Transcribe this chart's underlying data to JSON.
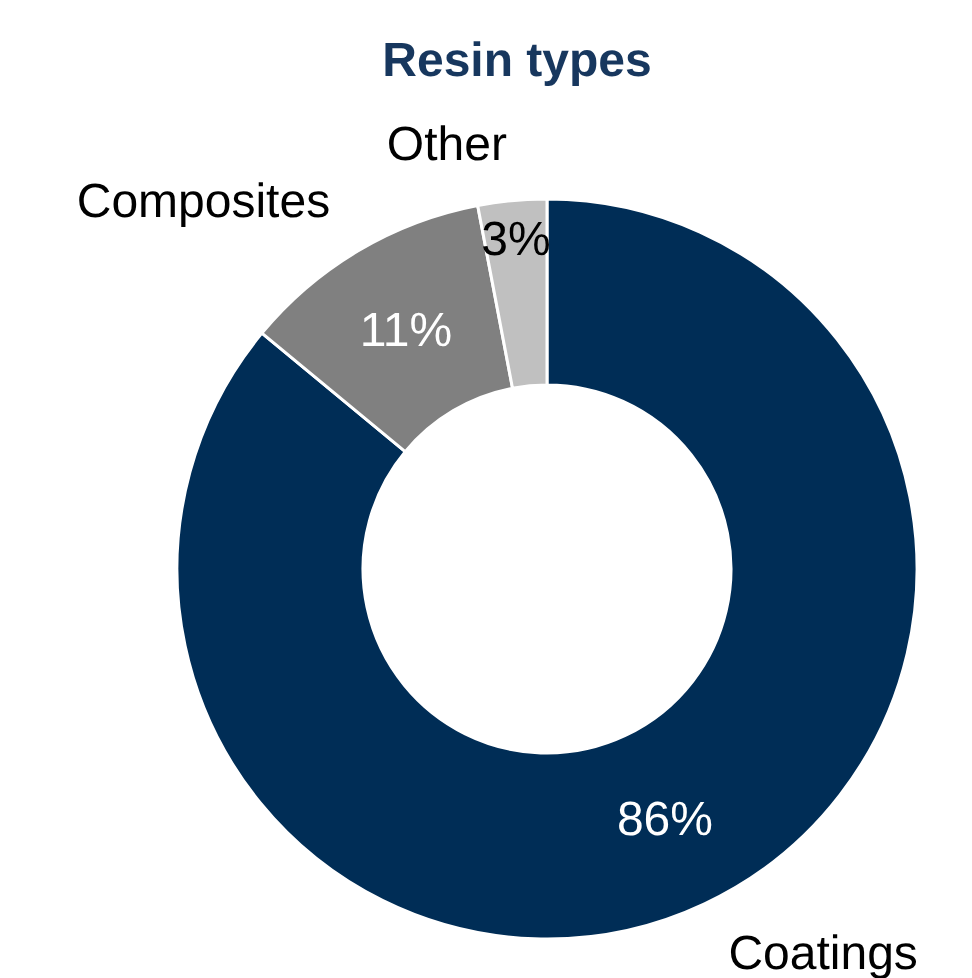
{
  "chart_data": {
    "type": "donut",
    "title": "Resin types",
    "categories": [
      "Coatings",
      "Composites",
      "Other"
    ],
    "values": [
      86,
      11,
      3
    ],
    "colors": [
      "#002d56",
      "#808080",
      "#c0c0c0"
    ],
    "value_labels": [
      "86%",
      "11%",
      "3%"
    ]
  }
}
